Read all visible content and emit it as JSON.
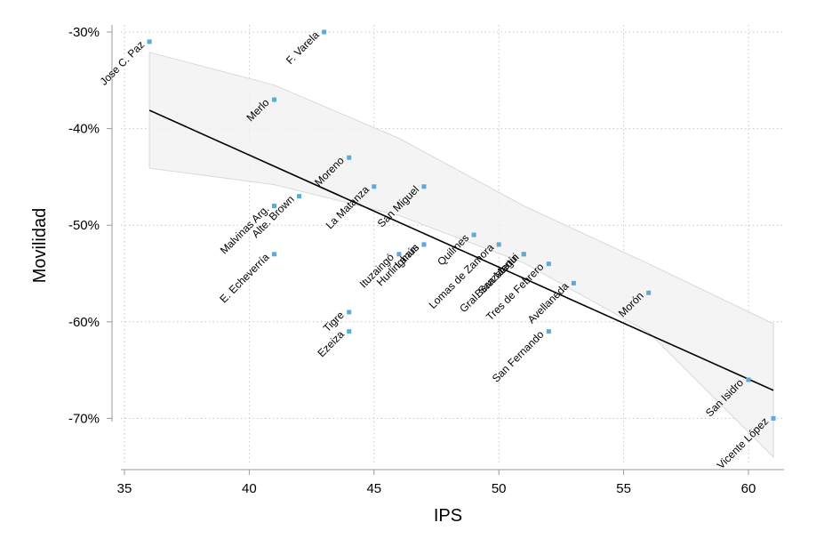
{
  "chart_data": {
    "type": "scatter",
    "title": "",
    "xlabel": "IPS",
    "ylabel": "Movilidad",
    "xlim": [
      34.5,
      61.5
    ],
    "ylim": [
      -75.5,
      -29.0
    ],
    "xticks": [
      35,
      40,
      45,
      50,
      55,
      60
    ],
    "yticks": [
      -30,
      -40,
      -50,
      -60,
      -70
    ],
    "ytick_labels": [
      "-30%",
      "-40%",
      "-50%",
      "-60%",
      "-70%"
    ],
    "grid": true,
    "point_color": "#5fa9d8",
    "points": [
      {
        "label": "Jose C. Paz",
        "x": 36,
        "y": -31
      },
      {
        "label": "F. Varela",
        "x": 43,
        "y": -30
      },
      {
        "label": "Merlo",
        "x": 41,
        "y": -37
      },
      {
        "label": "Moreno",
        "x": 44,
        "y": -43
      },
      {
        "label": "La Matanza",
        "x": 45,
        "y": -46
      },
      {
        "label": "San Miguel",
        "x": 47,
        "y": -46
      },
      {
        "label": "Malvinas Arg.",
        "x": 41,
        "y": -48
      },
      {
        "label": "Alte. Brown",
        "x": 42,
        "y": -47
      },
      {
        "label": "E. Echeverría",
        "x": 41,
        "y": -53
      },
      {
        "label": "Ituzaingó",
        "x": 46,
        "y": -53
      },
      {
        "label": "Lanús",
        "x": 47,
        "y": -52
      },
      {
        "label": "Hurlingham",
        "x": 47,
        "y": -52
      },
      {
        "label": "Quilmes",
        "x": 49,
        "y": -51
      },
      {
        "label": "Lomas de Zamora",
        "x": 50,
        "y": -52
      },
      {
        "label": "Berazategui",
        "x": 51,
        "y": -53
      },
      {
        "label": "Gral. San Martín",
        "x": 51,
        "y": -53
      },
      {
        "label": "Tres de Febrero",
        "x": 52,
        "y": -54
      },
      {
        "label": "Avellaneda",
        "x": 53,
        "y": -56
      },
      {
        "label": "Morón",
        "x": 56,
        "y": -57
      },
      {
        "label": "Tigre",
        "x": 44,
        "y": -59
      },
      {
        "label": "Ezeiza",
        "x": 44,
        "y": -61
      },
      {
        "label": "San Fernando",
        "x": 52,
        "y": -61
      },
      {
        "label": "San Isidro",
        "x": 60,
        "y": -66
      },
      {
        "label": "Vicente López",
        "x": 61,
        "y": -70
      }
    ],
    "fit_line": {
      "x": [
        36,
        61
      ],
      "y": [
        -38.1,
        -67.1
      ]
    },
    "confidence_band": {
      "x": [
        36,
        41,
        46,
        51,
        56,
        61
      ],
      "upper": [
        -32.1,
        -35.5,
        -41.0,
        -48.0,
        -54.0,
        -60.2
      ],
      "lower": [
        -44.1,
        -45.8,
        -49.0,
        -53.9,
        -61.1,
        -74.0
      ]
    }
  }
}
